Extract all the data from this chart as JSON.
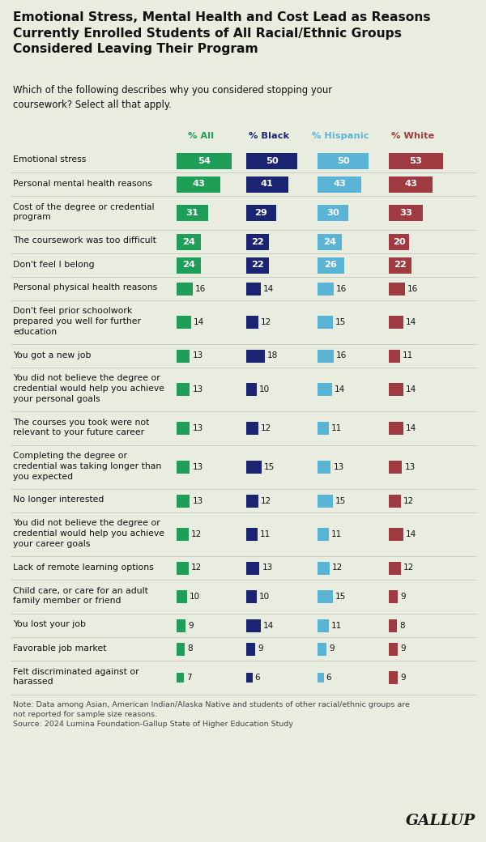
{
  "title": "Emotional Stress, Mental Health and Cost Lead as Reasons\nCurrently Enrolled Students of All Racial/Ethnic Groups\nConsidered Leaving Their Program",
  "subtitle": "Which of the following describes why you considered stopping your\ncoursework? Select all that apply.",
  "note": "Note: Data among Asian, American Indian/Alaska Native and students of other racial/ethnic groups are\nnot reported for sample size reasons.\nSource: 2024 Lumina Foundation-Gallup State of Higher Education Study",
  "col_headers": [
    "% All",
    "% Black",
    "% Hispanic",
    "% White"
  ],
  "col_colors": [
    "#1e9e57",
    "#1a2472",
    "#5ab4d6",
    "#9e3a40"
  ],
  "background_color": "#e8ede0",
  "categories": [
    "Emotional stress",
    "Personal mental health reasons",
    "Cost of the degree or credential\nprogram",
    "The coursework was too difficult",
    "Don't feel I belong",
    "Personal physical health reasons",
    "Don't feel prior schoolwork\nprepared you well for further\neducation",
    "You got a new job",
    "You did not believe the degree or\ncredential would help you achieve\nyour personal goals",
    "The courses you took were not\nrelevant to your future career",
    "Completing the degree or\ncredential was taking longer than\nyou expected",
    "No longer interested",
    "You did not believe the degree or\ncredential would help you achieve\nyour career goals",
    "Lack of remote learning options",
    "Child care, or care for an adult\nfamily member or friend",
    "You lost your job",
    "Favorable job market",
    "Felt discriminated against or\nharassed"
  ],
  "values": [
    [
      54,
      50,
      50,
      53
    ],
    [
      43,
      41,
      43,
      43
    ],
    [
      31,
      29,
      30,
      33
    ],
    [
      24,
      22,
      24,
      20
    ],
    [
      24,
      22,
      26,
      22
    ],
    [
      16,
      14,
      16,
      16
    ],
    [
      14,
      12,
      15,
      14
    ],
    [
      13,
      18,
      16,
      11
    ],
    [
      13,
      10,
      14,
      14
    ],
    [
      13,
      12,
      11,
      14
    ],
    [
      13,
      15,
      13,
      13
    ],
    [
      13,
      12,
      15,
      12
    ],
    [
      12,
      11,
      11,
      14
    ],
    [
      12,
      13,
      12,
      12
    ],
    [
      10,
      10,
      15,
      9
    ],
    [
      9,
      14,
      11,
      8
    ],
    [
      8,
      9,
      9,
      9
    ],
    [
      7,
      6,
      6,
      9
    ]
  ],
  "row_line_counts": [
    1,
    1,
    2,
    1,
    1,
    1,
    3,
    1,
    3,
    2,
    3,
    1,
    3,
    1,
    2,
    1,
    1,
    2
  ]
}
